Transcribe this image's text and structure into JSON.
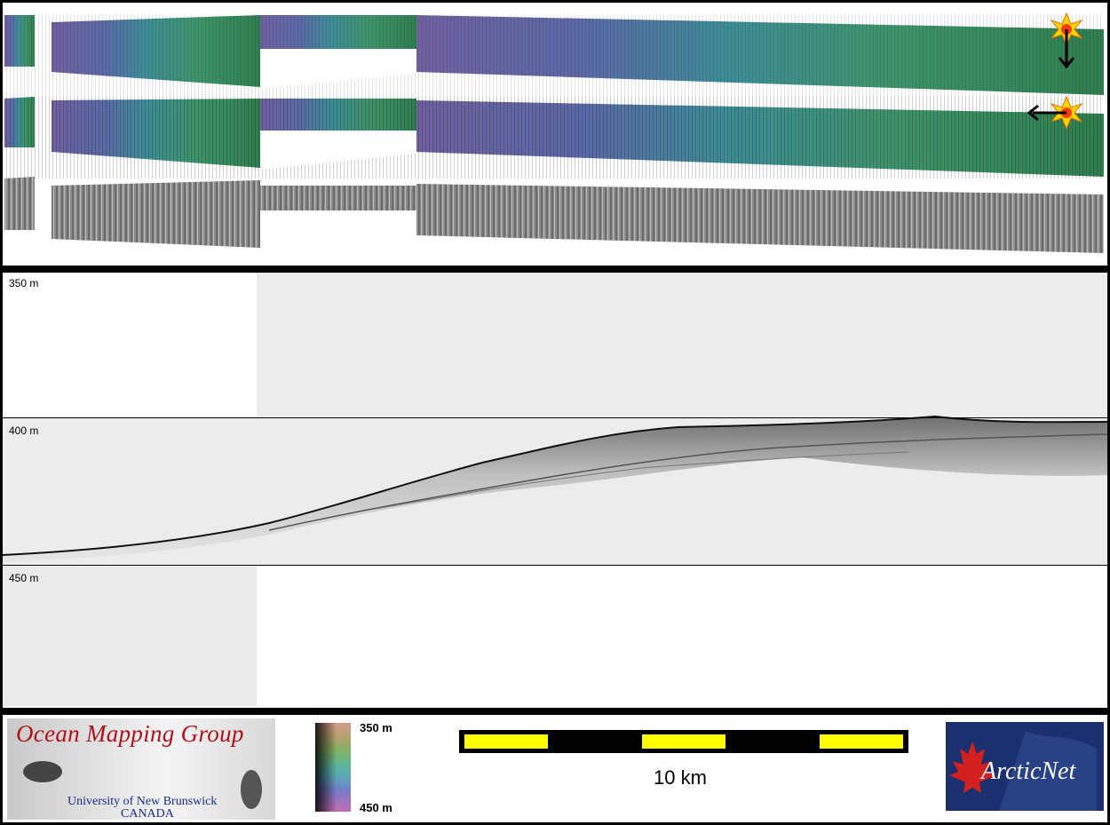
{
  "profile": {
    "depth_labels": [
      "350 m",
      "400 m",
      "450 m"
    ]
  },
  "legend": {
    "colorbar_top": "350 m",
    "colorbar_bottom": "450 m",
    "scale_bar_label": "10 km"
  },
  "logos": {
    "ocean_mapping": {
      "title": "Ocean Mapping Group",
      "line1": "University of New Brunswick",
      "line2": "CANADA"
    },
    "arcticnet": {
      "name": "ArcticNet"
    }
  },
  "icons": [
    "sun-lighting-icon",
    "arrow-down-icon",
    "arrow-left-icon"
  ],
  "colors": {
    "bathy_start": "#6a5a9a",
    "bathy_end": "#3a8a5a",
    "scale_yellow": "#ffff00",
    "ogm_red": "#b0101a",
    "arcticnet_blue": "#1c2f6e"
  }
}
